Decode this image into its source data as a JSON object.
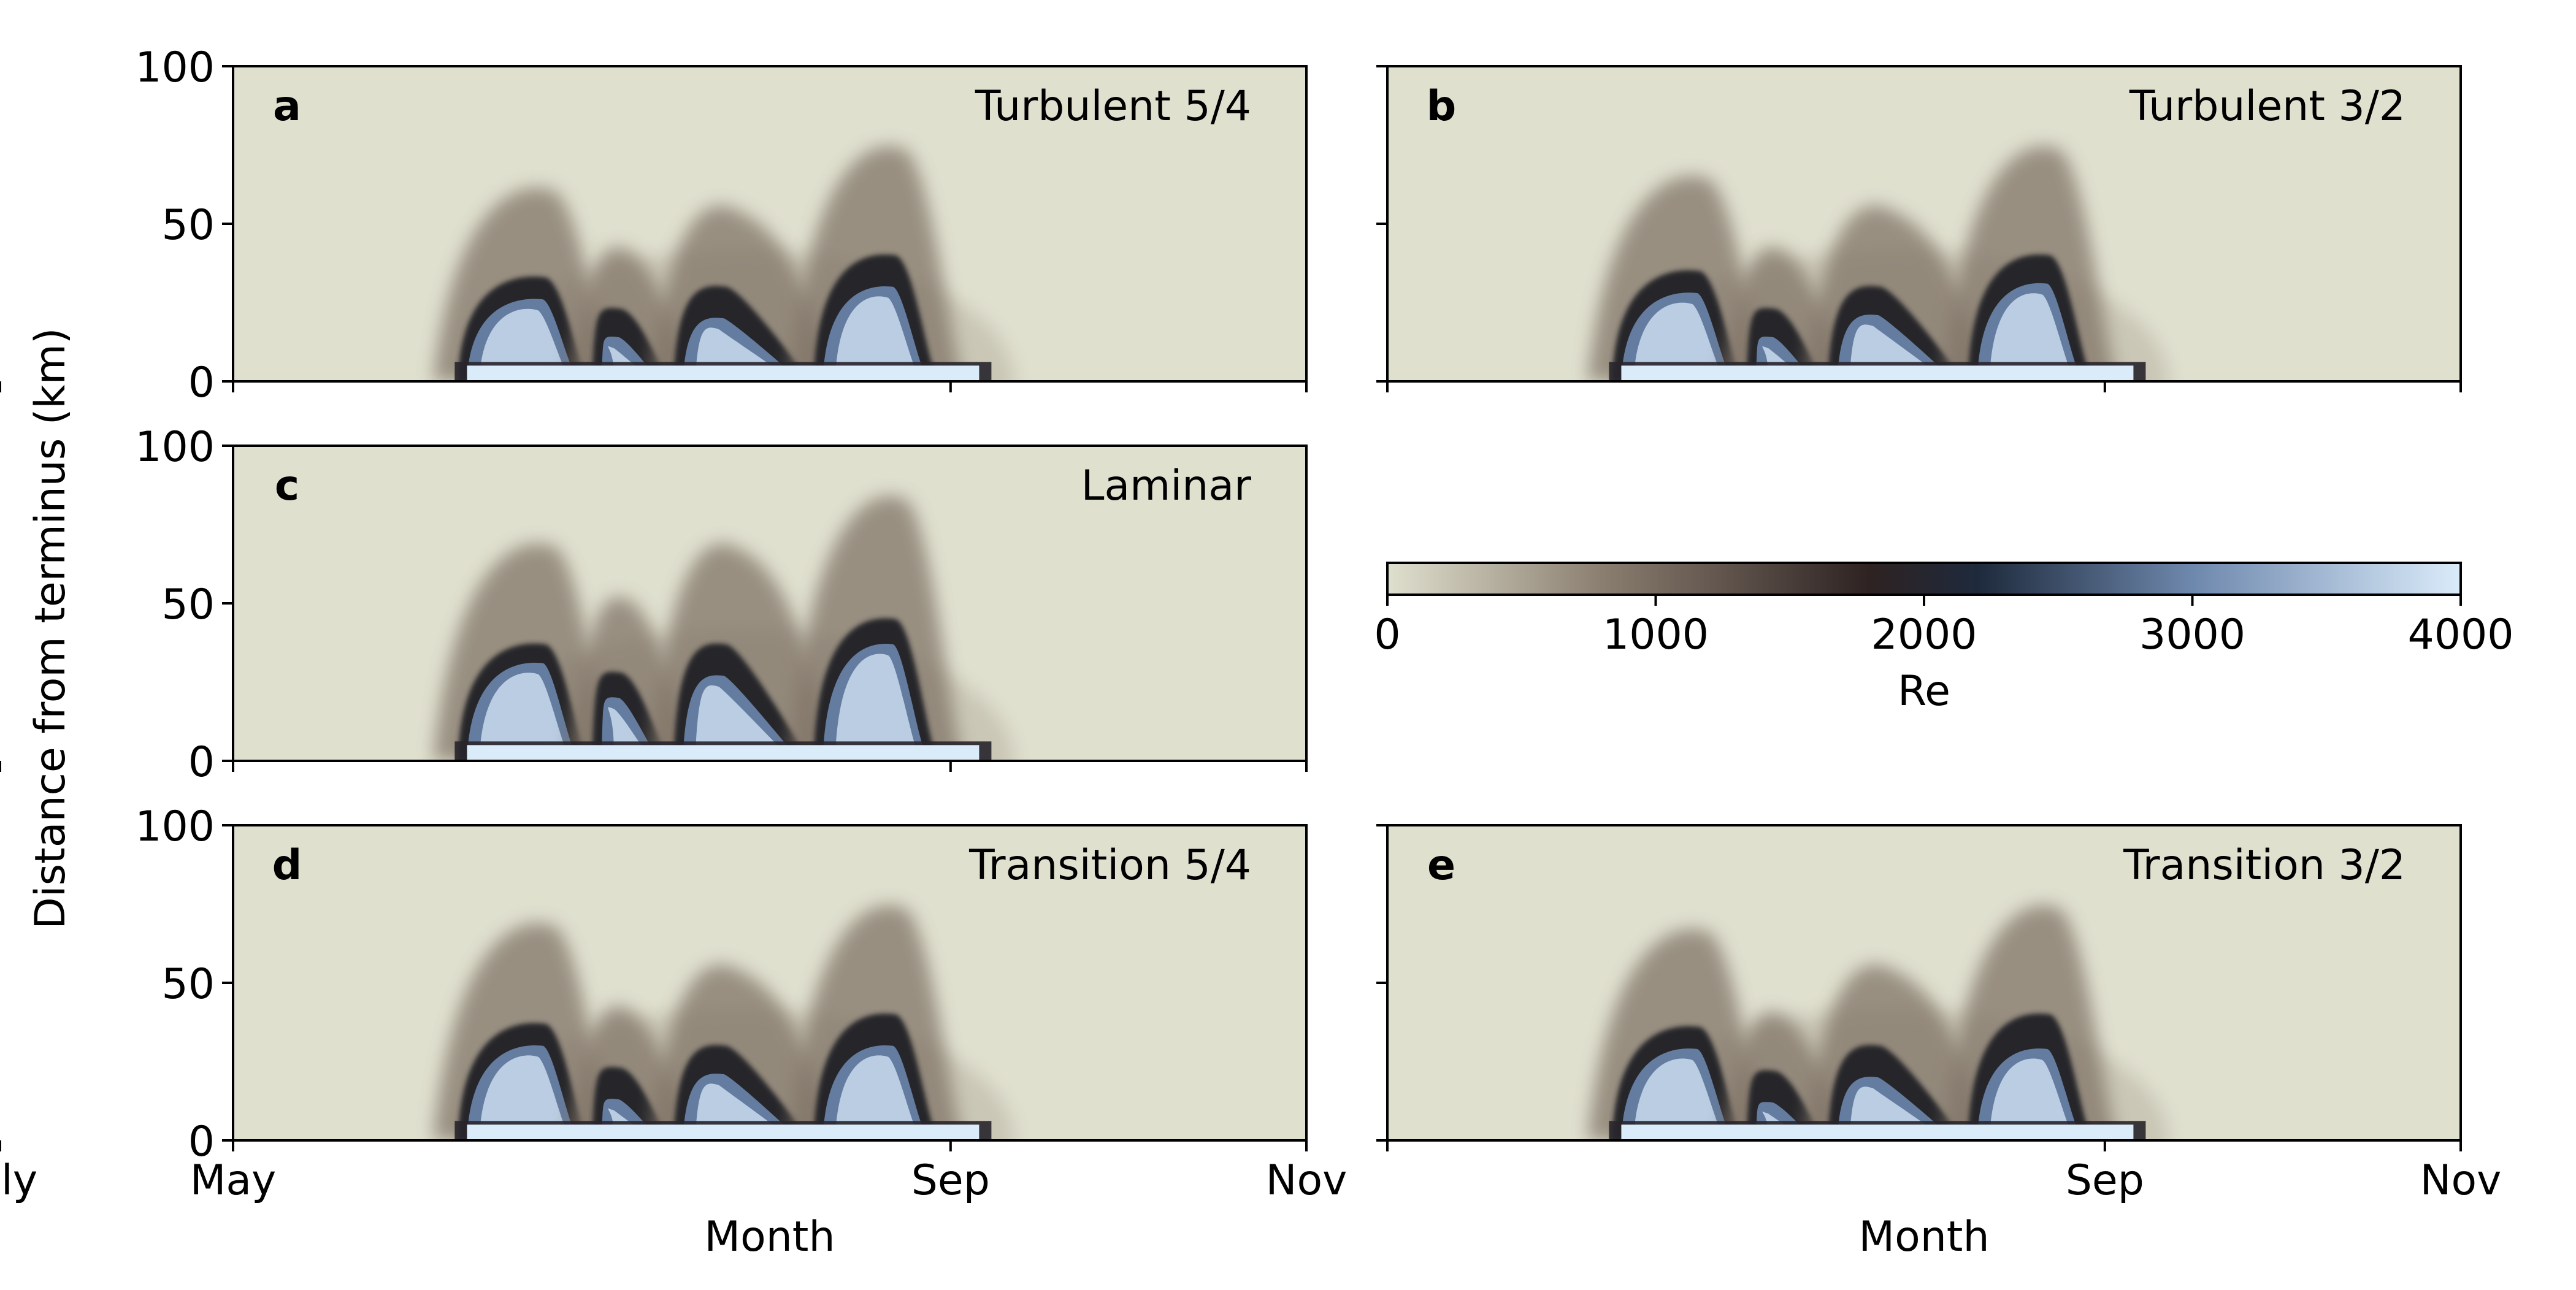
{
  "chart_data": {
    "type": "heatmap",
    "ylabel": "Distance from terminus (km)",
    "xlabel": "Month",
    "x_range": [
      "May",
      "Nov"
    ],
    "x_ticks": [
      "May",
      "July",
      "Sep",
      "Nov"
    ],
    "y_range": [
      0,
      100
    ],
    "y_ticks": [
      0,
      50,
      100
    ],
    "colorbar": {
      "label": "Re",
      "range": [
        0,
        4000
      ],
      "ticks": [
        0,
        1000,
        2000,
        3000,
        4000
      ],
      "stops": [
        {
          "value": 0,
          "color": "#e0e0cf"
        },
        {
          "value": 800,
          "color": "#8a7e70"
        },
        {
          "value": 1800,
          "color": "#2e2222"
        },
        {
          "value": 2200,
          "color": "#1e2a3c"
        },
        {
          "value": 3000,
          "color": "#6e88ad"
        },
        {
          "value": 4000,
          "color": "#daebfa"
        }
      ]
    },
    "panels": [
      {
        "letter": "a",
        "title": "Turbulent 5/4",
        "show_xtick_labels": false,
        "show_ytick_labels": true,
        "xlabel_shown": false,
        "events": [
          {
            "t_start": "Jun 08",
            "t_peak": "Jun 24",
            "t_end": "Jul 01",
            "peak_km": 33,
            "core_km": 26
          },
          {
            "t_start": "Jul 01",
            "t_peak": "Jul 07",
            "t_end": "Jul 15",
            "peak_km": 23,
            "core_km": 14
          },
          {
            "t_start": "Jul 15",
            "t_peak": "Jul 25",
            "t_end": "Aug 08",
            "peak_km": 30,
            "core_km": 20
          },
          {
            "t_start": "Aug 08",
            "t_peak": "Aug 23",
            "t_end": "Aug 30",
            "peak_km": 40,
            "core_km": 30
          }
        ]
      },
      {
        "letter": "b",
        "title": "Turbulent 3/2",
        "show_xtick_labels": false,
        "show_ytick_labels": false,
        "xlabel_shown": false,
        "events": [
          {
            "t_start": "Jun 08",
            "t_peak": "Jun 24",
            "t_end": "Jul 01",
            "peak_km": 35,
            "core_km": 28
          },
          {
            "t_start": "Jul 01",
            "t_peak": "Jul 07",
            "t_end": "Jul 15",
            "peak_km": 23,
            "core_km": 14
          },
          {
            "t_start": "Jul 15",
            "t_peak": "Jul 25",
            "t_end": "Aug 08",
            "peak_km": 30,
            "core_km": 21
          },
          {
            "t_start": "Aug 08",
            "t_peak": "Aug 23",
            "t_end": "Aug 30",
            "peak_km": 40,
            "core_km": 31
          }
        ]
      },
      {
        "letter": "c",
        "title": "Laminar",
        "show_xtick_labels": false,
        "show_ytick_labels": true,
        "xlabel_shown": false,
        "events": [
          {
            "t_start": "Jun 08",
            "t_peak": "Jun 24",
            "t_end": "Jul 01",
            "peak_km": 37,
            "core_km": 31
          },
          {
            "t_start": "Jul 01",
            "t_peak": "Jul 07",
            "t_end": "Jul 15",
            "peak_km": 28,
            "core_km": 20
          },
          {
            "t_start": "Jul 15",
            "t_peak": "Jul 25",
            "t_end": "Aug 08",
            "peak_km": 37,
            "core_km": 27
          },
          {
            "t_start": "Aug 08",
            "t_peak": "Aug 23",
            "t_end": "Aug 30",
            "peak_km": 45,
            "core_km": 37
          }
        ]
      },
      {
        "letter": "d",
        "title": "Transition 5/4",
        "show_xtick_labels": true,
        "show_ytick_labels": true,
        "xlabel_shown": true,
        "events": [
          {
            "t_start": "Jun 08",
            "t_peak": "Jun 24",
            "t_end": "Jul 01",
            "peak_km": 37,
            "core_km": 30
          },
          {
            "t_start": "Jul 01",
            "t_peak": "Jul 07",
            "t_end": "Jul 15",
            "peak_km": 23,
            "core_km": 13
          },
          {
            "t_start": "Jul 15",
            "t_peak": "Jul 25",
            "t_end": "Aug 08",
            "peak_km": 30,
            "core_km": 21
          },
          {
            "t_start": "Aug 08",
            "t_peak": "Aug 23",
            "t_end": "Aug 30",
            "peak_km": 40,
            "core_km": 30
          }
        ]
      },
      {
        "letter": "e",
        "title": "Transition 3/2",
        "show_xtick_labels": true,
        "show_ytick_labels": false,
        "xlabel_shown": true,
        "events": [
          {
            "t_start": "Jun 08",
            "t_peak": "Jun 24",
            "t_end": "Jul 01",
            "peak_km": 36,
            "core_km": 29
          },
          {
            "t_start": "Jul 01",
            "t_peak": "Jul 07",
            "t_end": "Jul 15",
            "peak_km": 22,
            "core_km": 12
          },
          {
            "t_start": "Jul 15",
            "t_peak": "Jul 25",
            "t_end": "Aug 08",
            "peak_km": 30,
            "core_km": 20
          },
          {
            "t_start": "Aug 08",
            "t_peak": "Aug 23",
            "t_end": "Aug 30",
            "peak_km": 40,
            "core_km": 29
          }
        ]
      }
    ],
    "channel_band_km": [
      0,
      5
    ],
    "channel_period": [
      "Jun 08",
      "Sep 08"
    ]
  }
}
